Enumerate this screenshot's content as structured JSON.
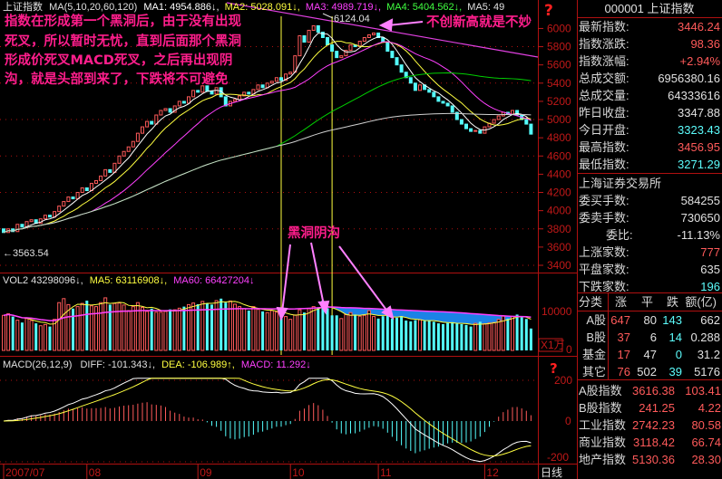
{
  "header": {
    "symbol": "上证指数",
    "ma_label": "MA(5,10,20,60,120)",
    "ma1": "MA1: 4954.886↓,",
    "ma2": "MA2: 5028.091↓,",
    "ma3": "MA3: 4989.719↓,",
    "ma4": "MA4: 5404.562↓,",
    "ma5": "MA5: 49",
    "help": "?"
  },
  "annotations": {
    "lines": [
      "指数在形成第一个黑洞后，由于没有出现",
      "死叉，所以暂时无忧，直到后面那个黑洞",
      "形成价死叉MACD死叉，之后再出现阴",
      "沟，就是头部到来了，下跌将不可避免"
    ],
    "top_note": "不创新高就是不妙",
    "hole_note": "黑洞阴沟",
    "high_label": "6124.04",
    "low_label": "←3563.54"
  },
  "volume_header": {
    "vol": "VOL2 43298096↓,",
    "ma5": "MA5: 63116908↓,",
    "ma60": "MA60: 66427204↓"
  },
  "macd_header": {
    "name": "MACD(26,12,9)",
    "diff": "DIFF: -101.343↓,",
    "dea": "DEA: -106.989↑,",
    "macd": "MACD: 11.292↓"
  },
  "axes": {
    "price_ticks": [
      "6000",
      "5800",
      "5600",
      "5400",
      "5200",
      "5000",
      "4800",
      "4600",
      "4400",
      "4200",
      "4000",
      "3800",
      "3600",
      "3400"
    ],
    "volume_ticks": [
      "10000",
      "0"
    ],
    "volume_unit": "X1万",
    "macd_ticks": [
      "200",
      "0",
      "-200"
    ],
    "macd_help": "?",
    "period": "日线"
  },
  "colors": {
    "up": "#ff5a5a",
    "down": "#54fcfc",
    "ma1": "#ffffff",
    "ma2": "#ffff40",
    "ma3": "#ff40ff",
    "ma4": "#00d000",
    "ma5": "#d0d0d0",
    "hole_fill": "#1e90ff",
    "annotation": "#ff1e8c",
    "grid": "#b01010"
  },
  "chart_data": {
    "type": "bar",
    "title": "上证指数",
    "ylim": [
      3400,
      6124
    ],
    "price_high": 6124.04,
    "price_low": 3563.54,
    "date_ticks": [
      {
        "label": "2007/07",
        "index": 0
      },
      {
        "label": "08",
        "index": 18
      },
      {
        "label": "09",
        "index": 42
      },
      {
        "label": "10",
        "index": 62
      },
      {
        "label": "11",
        "index": 81
      },
      {
        "label": "12",
        "index": 104
      }
    ],
    "close": [
      3760,
      3800,
      3770,
      3850,
      3820,
      3880,
      3900,
      3860,
      3910,
      3950,
      3930,
      3990,
      4050,
      4100,
      4150,
      4130,
      4200,
      4250,
      4220,
      4300,
      4330,
      4380,
      4450,
      4420,
      4520,
      4600,
      4650,
      4700,
      4760,
      4850,
      4920,
      4980,
      4950,
      5050,
      5100,
      5120,
      5080,
      5150,
      5200,
      5180,
      5250,
      5320,
      5300,
      5370,
      5310,
      5280,
      5350,
      5250,
      5150,
      5200,
      5220,
      5260,
      5300,
      5280,
      5330,
      5380,
      5350,
      5400,
      5420,
      5460,
      5430,
      5500,
      5520,
      5700,
      5920,
      5850,
      5980,
      6030,
      5960,
      5900,
      5820,
      5750,
      5680,
      5700,
      5760,
      5820,
      5800,
      5860,
      5900,
      5930,
      5950,
      5900,
      5850,
      5750,
      5680,
      5600,
      5520,
      5460,
      5400,
      5320,
      5380,
      5330,
      5300,
      5250,
      5200,
      5180,
      5150,
      5080,
      5000,
      4950,
      4900,
      4870,
      4880,
      4850,
      4920,
      4960,
      5000,
      5040,
      5080,
      5060,
      5100,
      5050,
      5000,
      4950,
      4840
    ],
    "volume": [
      8800,
      9200,
      8500,
      7600,
      7000,
      8000,
      7500,
      6800,
      6200,
      6500,
      6000,
      7800,
      12000,
      13000,
      11500,
      10500,
      11000,
      11800,
      12500,
      11200,
      11000,
      12000,
      13200,
      11500,
      11800,
      11900,
      11400,
      10000,
      11000,
      12000,
      10800,
      9800,
      10500,
      9600,
      9600,
      9800,
      10300,
      10200,
      10600,
      11000,
      11500,
      11900,
      11600,
      12300,
      11800,
      11500,
      12500,
      13000,
      12000,
      12400,
      11600,
      11000,
      10500,
      10000,
      11000,
      10300,
      9800,
      9500,
      10000,
      9600,
      9400,
      8500,
      7800,
      8900,
      10200,
      9500,
      10500,
      11000,
      10800,
      12500,
      10600,
      8800,
      8800,
      8000,
      9000,
      9500,
      9000,
      8600,
      8800,
      10000,
      8500,
      8000,
      8600,
      9000,
      8000,
      8200,
      8600,
      7500,
      7300,
      7600,
      7700,
      7400,
      7400,
      7200,
      6800,
      6600,
      6900,
      7100,
      6700,
      6600,
      6400,
      6000,
      6800,
      7200,
      6700,
      6900,
      7000,
      7800,
      8600,
      8000,
      8500,
      9000,
      8300,
      7900,
      5500
    ],
    "ma_periods": [
      5,
      10,
      20,
      60,
      120
    ],
    "volume_ma_periods": [
      5,
      60
    ],
    "macd_params": [
      26,
      12,
      9
    ],
    "macd_ylim": [
      -200,
      200
    ],
    "volume_ylim": [
      0,
      10000
    ]
  },
  "info": {
    "title": "000001 上证指数",
    "quote": [
      {
        "label": "最新指数:",
        "value": "3446.24",
        "color": "red"
      },
      {
        "label": "指数涨跌:",
        "value": "98.36",
        "color": "red"
      },
      {
        "label": "指数涨幅:",
        "value": "+2.94%",
        "color": "red"
      },
      {
        "label": "总成交额:",
        "value": "6956380.16",
        "color": "wht"
      },
      {
        "label": "总成交量:",
        "value": "64333616",
        "color": "wht"
      },
      {
        "label": "昨日收盘:",
        "value": "3347.88",
        "color": "wht"
      },
      {
        "label": "今日开盘:",
        "value": "3323.43",
        "color": "cyan"
      },
      {
        "label": "最高指数:",
        "value": "3456.95",
        "color": "red"
      },
      {
        "label": "最低指数:",
        "value": "3271.29",
        "color": "cyan"
      }
    ],
    "exchange": "上海证券交易所",
    "orders": [
      {
        "label": "委买手数:",
        "value": "584255",
        "color": "wht"
      },
      {
        "label": "委卖手数:",
        "value": "730650",
        "color": "wht"
      },
      {
        "label": "委比:",
        "value": "-11.13%",
        "color": "wht"
      },
      {
        "label": "上涨家数:",
        "value": "777",
        "color": "red"
      },
      {
        "label": "平盘家数:",
        "value": "635",
        "color": "wht"
      },
      {
        "label": "下跌家数:",
        "value": "196",
        "color": "cyan"
      }
    ],
    "breadth_headers": [
      "分类",
      "涨",
      "平",
      "跌",
      "额(亿)"
    ],
    "breadth": [
      [
        "A股",
        "647",
        "80",
        "143",
        "662"
      ],
      [
        "B股",
        "37",
        "6",
        "14",
        "0.288"
      ],
      [
        "基金",
        "17",
        "47",
        "0",
        "31.2"
      ],
      [
        "其它",
        "76",
        "502",
        "39",
        "5176"
      ]
    ],
    "indices": [
      [
        "A股指数",
        "3616.38",
        "103.41"
      ],
      [
        "B股指数",
        "241.25",
        "4.22"
      ],
      [
        "工业指数",
        "2742.23",
        "80.58"
      ],
      [
        "商业指数",
        "3118.42",
        "66.74"
      ],
      [
        "地产指数",
        "5130.36",
        "28.30"
      ]
    ]
  }
}
